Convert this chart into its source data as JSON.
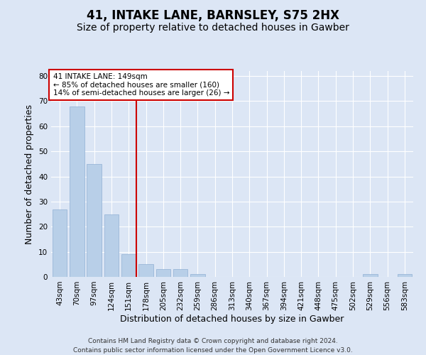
{
  "title1": "41, INTAKE LANE, BARNSLEY, S75 2HX",
  "title2": "Size of property relative to detached houses in Gawber",
  "xlabel": "Distribution of detached houses by size in Gawber",
  "ylabel": "Number of detached properties",
  "footnote1": "Contains HM Land Registry data © Crown copyright and database right 2024.",
  "footnote2": "Contains public sector information licensed under the Open Government Licence v3.0.",
  "categories": [
    "43sqm",
    "70sqm",
    "97sqm",
    "124sqm",
    "151sqm",
    "178sqm",
    "205sqm",
    "232sqm",
    "259sqm",
    "286sqm",
    "313sqm",
    "340sqm",
    "367sqm",
    "394sqm",
    "421sqm",
    "448sqm",
    "475sqm",
    "502sqm",
    "529sqm",
    "556sqm",
    "583sqm"
  ],
  "bar_values": [
    27,
    68,
    45,
    25,
    9,
    5,
    3,
    3,
    1,
    0,
    0,
    0,
    0,
    0,
    0,
    0,
    0,
    0,
    1,
    0,
    1
  ],
  "bar_color": "#b8cfe8",
  "bar_edge_color": "#90afd4",
  "vline_color": "#cc0000",
  "vline_index": 4,
  "annotation_text": "41 INTAKE LANE: 149sqm\n← 85% of detached houses are smaller (160)\n14% of semi-detached houses are larger (26) →",
  "annotation_box_color": "#ffffff",
  "annotation_box_edge": "#cc0000",
  "ylim": [
    0,
    82
  ],
  "yticks": [
    0,
    10,
    20,
    30,
    40,
    50,
    60,
    70,
    80
  ],
  "background_color": "#dce6f5",
  "grid_color": "#ffffff",
  "title_fontsize": 12,
  "subtitle_fontsize": 10,
  "tick_fontsize": 7.5,
  "label_fontsize": 9,
  "footnote_fontsize": 6.5
}
